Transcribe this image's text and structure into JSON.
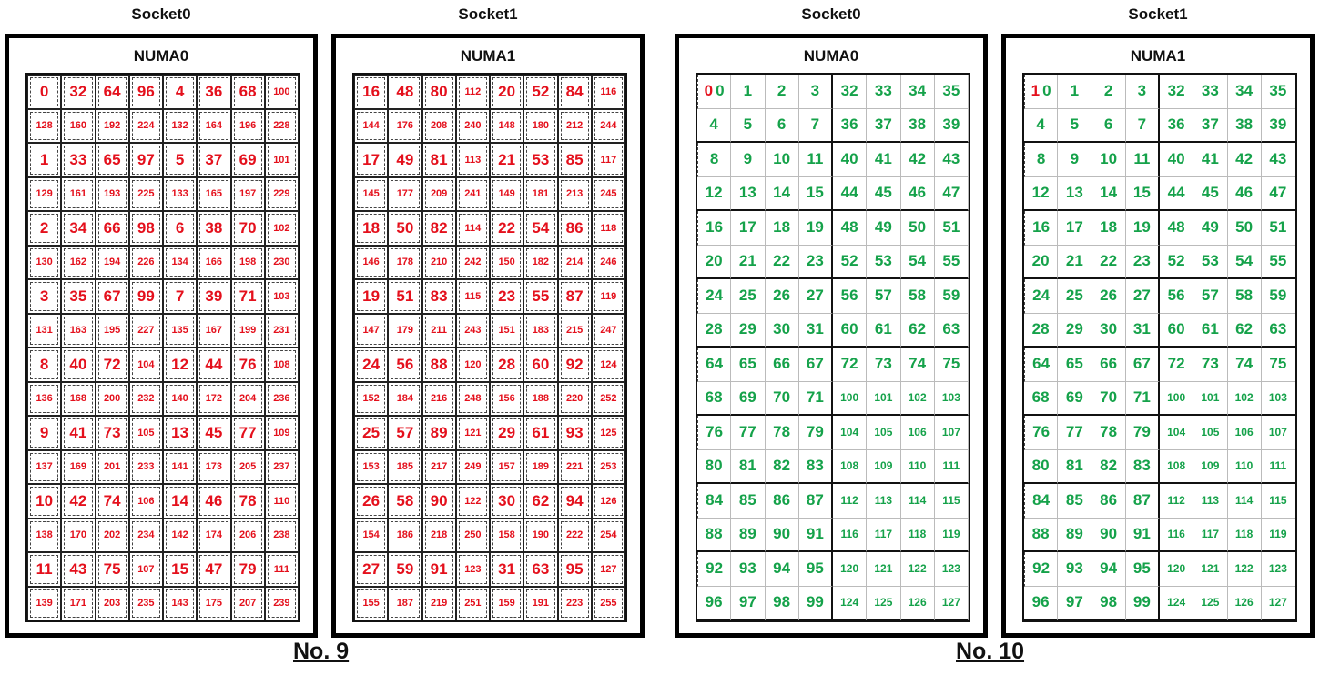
{
  "panels": [
    {
      "socket": "Socket0",
      "numa": "NUMA0",
      "style": "red",
      "rows": [
        [
          "0",
          "32",
          "64",
          "96",
          "4",
          "36",
          "68",
          "100"
        ],
        [
          "128",
          "160",
          "192",
          "224",
          "132",
          "164",
          "196",
          "228"
        ],
        [
          "1",
          "33",
          "65",
          "97",
          "5",
          "37",
          "69",
          "101"
        ],
        [
          "129",
          "161",
          "193",
          "225",
          "133",
          "165",
          "197",
          "229"
        ],
        [
          "2",
          "34",
          "66",
          "98",
          "6",
          "38",
          "70",
          "102"
        ],
        [
          "130",
          "162",
          "194",
          "226",
          "134",
          "166",
          "198",
          "230"
        ],
        [
          "3",
          "35",
          "67",
          "99",
          "7",
          "39",
          "71",
          "103"
        ],
        [
          "131",
          "163",
          "195",
          "227",
          "135",
          "167",
          "199",
          "231"
        ],
        [
          "8",
          "40",
          "72",
          "104",
          "12",
          "44",
          "76",
          "108"
        ],
        [
          "136",
          "168",
          "200",
          "232",
          "140",
          "172",
          "204",
          "236"
        ],
        [
          "9",
          "41",
          "73",
          "105",
          "13",
          "45",
          "77",
          "109"
        ],
        [
          "137",
          "169",
          "201",
          "233",
          "141",
          "173",
          "205",
          "237"
        ],
        [
          "10",
          "42",
          "74",
          "106",
          "14",
          "46",
          "78",
          "110"
        ],
        [
          "138",
          "170",
          "202",
          "234",
          "142",
          "174",
          "206",
          "238"
        ],
        [
          "11",
          "43",
          "75",
          "107",
          "15",
          "47",
          "79",
          "111"
        ],
        [
          "139",
          "171",
          "203",
          "235",
          "143",
          "175",
          "207",
          "239"
        ]
      ]
    },
    {
      "socket": "Socket1",
      "numa": "NUMA1",
      "style": "red",
      "rows": [
        [
          "16",
          "48",
          "80",
          "112",
          "20",
          "52",
          "84",
          "116"
        ],
        [
          "144",
          "176",
          "208",
          "240",
          "148",
          "180",
          "212",
          "244"
        ],
        [
          "17",
          "49",
          "81",
          "113",
          "21",
          "53",
          "85",
          "117"
        ],
        [
          "145",
          "177",
          "209",
          "241",
          "149",
          "181",
          "213",
          "245"
        ],
        [
          "18",
          "50",
          "82",
          "114",
          "22",
          "54",
          "86",
          "118"
        ],
        [
          "146",
          "178",
          "210",
          "242",
          "150",
          "182",
          "214",
          "246"
        ],
        [
          "19",
          "51",
          "83",
          "115",
          "23",
          "55",
          "87",
          "119"
        ],
        [
          "147",
          "179",
          "211",
          "243",
          "151",
          "183",
          "215",
          "247"
        ],
        [
          "24",
          "56",
          "88",
          "120",
          "28",
          "60",
          "92",
          "124"
        ],
        [
          "152",
          "184",
          "216",
          "248",
          "156",
          "188",
          "220",
          "252"
        ],
        [
          "25",
          "57",
          "89",
          "121",
          "29",
          "61",
          "93",
          "125"
        ],
        [
          "153",
          "185",
          "217",
          "249",
          "157",
          "189",
          "221",
          "253"
        ],
        [
          "26",
          "58",
          "90",
          "122",
          "30",
          "62",
          "94",
          "126"
        ],
        [
          "154",
          "186",
          "218",
          "250",
          "158",
          "190",
          "222",
          "254"
        ],
        [
          "27",
          "59",
          "91",
          "123",
          "31",
          "63",
          "95",
          "127"
        ],
        [
          "155",
          "187",
          "219",
          "251",
          "159",
          "191",
          "223",
          "255"
        ]
      ]
    },
    {
      "socket": "Socket0",
      "numa": "NUMA0",
      "style": "green",
      "marker": "0",
      "rows": [
        [
          "0",
          "1",
          "2",
          "3",
          "32",
          "33",
          "34",
          "35"
        ],
        [
          "4",
          "5",
          "6",
          "7",
          "36",
          "37",
          "38",
          "39"
        ],
        [
          "8",
          "9",
          "10",
          "11",
          "40",
          "41",
          "42",
          "43"
        ],
        [
          "12",
          "13",
          "14",
          "15",
          "44",
          "45",
          "46",
          "47"
        ],
        [
          "16",
          "17",
          "18",
          "19",
          "48",
          "49",
          "50",
          "51"
        ],
        [
          "20",
          "21",
          "22",
          "23",
          "52",
          "53",
          "54",
          "55"
        ],
        [
          "24",
          "25",
          "26",
          "27",
          "56",
          "57",
          "58",
          "59"
        ],
        [
          "28",
          "29",
          "30",
          "31",
          "60",
          "61",
          "62",
          "63"
        ],
        [
          "64",
          "65",
          "66",
          "67",
          "72",
          "73",
          "74",
          "75"
        ],
        [
          "68",
          "69",
          "70",
          "71",
          "100",
          "101",
          "102",
          "103"
        ],
        [
          "76",
          "77",
          "78",
          "79",
          "104",
          "105",
          "106",
          "107"
        ],
        [
          "80",
          "81",
          "82",
          "83",
          "108",
          "109",
          "110",
          "111"
        ],
        [
          "84",
          "85",
          "86",
          "87",
          "112",
          "113",
          "114",
          "115"
        ],
        [
          "88",
          "89",
          "90",
          "91",
          "116",
          "117",
          "118",
          "119"
        ],
        [
          "92",
          "93",
          "94",
          "95",
          "120",
          "121",
          "122",
          "123"
        ],
        [
          "96",
          "97",
          "98",
          "99",
          "124",
          "125",
          "126",
          "127"
        ]
      ]
    },
    {
      "socket": "Socket1",
      "numa": "NUMA1",
      "style": "green",
      "marker": "1",
      "rows": [
        [
          "0",
          "1",
          "2",
          "3",
          "32",
          "33",
          "34",
          "35"
        ],
        [
          "4",
          "5",
          "6",
          "7",
          "36",
          "37",
          "38",
          "39"
        ],
        [
          "8",
          "9",
          "10",
          "11",
          "40",
          "41",
          "42",
          "43"
        ],
        [
          "12",
          "13",
          "14",
          "15",
          "44",
          "45",
          "46",
          "47"
        ],
        [
          "16",
          "17",
          "18",
          "19",
          "48",
          "49",
          "50",
          "51"
        ],
        [
          "20",
          "21",
          "22",
          "23",
          "52",
          "53",
          "54",
          "55"
        ],
        [
          "24",
          "25",
          "26",
          "27",
          "56",
          "57",
          "58",
          "59"
        ],
        [
          "28",
          "29",
          "30",
          "31",
          "60",
          "61",
          "62",
          "63"
        ],
        [
          "64",
          "65",
          "66",
          "67",
          "72",
          "73",
          "74",
          "75"
        ],
        [
          "68",
          "69",
          "70",
          "71",
          "100",
          "101",
          "102",
          "103"
        ],
        [
          "76",
          "77",
          "78",
          "79",
          "104",
          "105",
          "106",
          "107"
        ],
        [
          "80",
          "81",
          "82",
          "83",
          "108",
          "109",
          "110",
          "111"
        ],
        [
          "84",
          "85",
          "86",
          "87",
          "112",
          "113",
          "114",
          "115"
        ],
        [
          "88",
          "89",
          "90",
          "91",
          "116",
          "117",
          "118",
          "119"
        ],
        [
          "92",
          "93",
          "94",
          "95",
          "120",
          "121",
          "122",
          "123"
        ],
        [
          "96",
          "97",
          "98",
          "99",
          "124",
          "125",
          "126",
          "127"
        ]
      ]
    }
  ],
  "labels": [
    "No. 9",
    "No. 10"
  ]
}
